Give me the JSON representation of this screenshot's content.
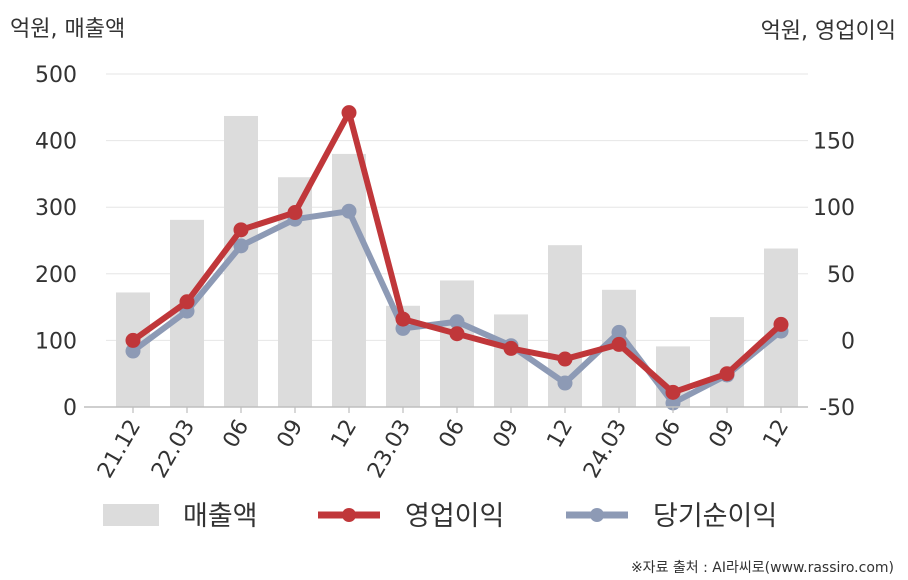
{
  "chart_data": {
    "type": "bar",
    "left_axis_label": "억원, 매출액",
    "right_axis_label": "억원, 영업이익",
    "categories": [
      "21.12",
      "22.03",
      "06",
      "09",
      "12",
      "23.03",
      "06",
      "09",
      "12",
      "24.03",
      "06",
      "09",
      "12"
    ],
    "left_ylim": [
      0,
      500
    ],
    "left_ticks": [
      "0",
      "100",
      "200",
      "300",
      "400",
      "500"
    ],
    "right_ylim": [
      -50,
      200
    ],
    "right_ticks": [
      "-50",
      "0",
      "50",
      "100",
      "150"
    ],
    "series": [
      {
        "name": "매출액",
        "type": "bar",
        "axis": "left",
        "color": "#dcdcdc",
        "values": [
          172,
          281,
          437,
          345,
          380,
          152,
          190,
          139,
          243,
          176,
          91,
          135,
          238
        ]
      },
      {
        "name": "영업이익",
        "type": "line",
        "axis": "right",
        "color": "#c0373a",
        "values": [
          0,
          29,
          83,
          96,
          171,
          16,
          5,
          -6,
          -14,
          -3,
          -39,
          -25,
          12
        ]
      },
      {
        "name": "당기순이익",
        "type": "line",
        "axis": "right",
        "color": "#8d9ab5",
        "values": [
          -8,
          22,
          71,
          91,
          97,
          9,
          14,
          -4,
          -32,
          6,
          -47,
          -26,
          7
        ]
      }
    ],
    "grid": true,
    "legend": "bottom"
  },
  "source": "※자료 출처 : AI라씨로(www.rassiro.com)"
}
